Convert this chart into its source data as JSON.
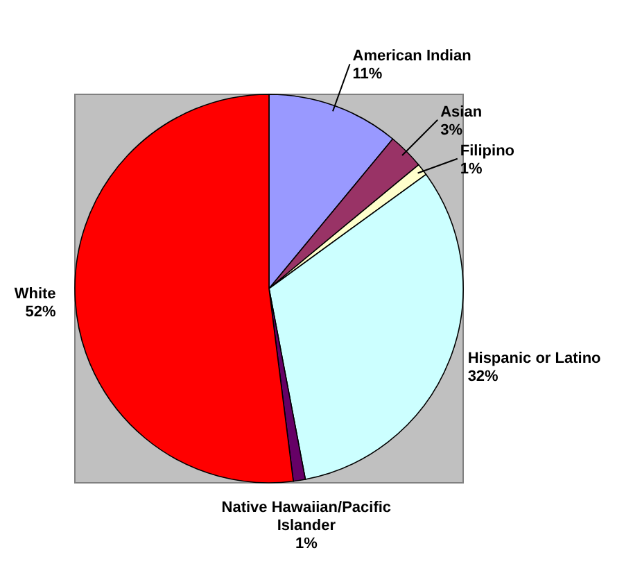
{
  "chart_data": {
    "type": "pie",
    "categories": [
      "American Indian",
      "Asian",
      "Filipino",
      "Hispanic or Latino",
      "Native Hawaiian/Pacific Islander",
      "White"
    ],
    "values": [
      11,
      3,
      1,
      32,
      1,
      52
    ],
    "colors": [
      "#9999ff",
      "#993366",
      "#ffffcc",
      "#ccffff",
      "#660066",
      "#ff0000"
    ],
    "value_labels": [
      "11%",
      "3%",
      "1%",
      "32%",
      "1%",
      "52%"
    ]
  }
}
